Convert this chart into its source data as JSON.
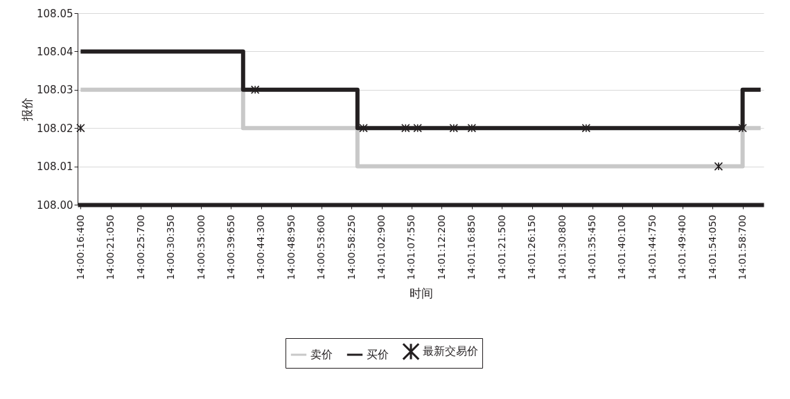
{
  "chart_data": {
    "type": "step",
    "xlabel": "时间",
    "ylabel": "报价",
    "categories": [
      "14:00:16:400",
      null,
      null,
      null,
      null,
      "14:00:21:050",
      null,
      null,
      null,
      null,
      "14:00:25:700",
      null,
      null,
      null,
      null,
      "14:00:30:350",
      null,
      null,
      null,
      null,
      "14:00:35:000",
      null,
      null,
      null,
      null,
      "14:00:39:650",
      null,
      null,
      null,
      null,
      "14:00:44:300",
      null,
      null,
      null,
      null,
      "14:00:48:950",
      null,
      null,
      null,
      null,
      "14:00:53:600",
      null,
      null,
      null,
      null,
      "14:00:58:250",
      null,
      null,
      null,
      null,
      "14:01:02:900",
      null,
      null,
      null,
      null,
      "14:01:07:550",
      null,
      null,
      null,
      null,
      "14:01:12:200",
      null,
      null,
      null,
      null,
      "14:01:16:850",
      null,
      null,
      null,
      null,
      "14:01:21:500",
      null,
      null,
      null,
      null,
      "14:01:26:150",
      null,
      null,
      null,
      null,
      "14:01:30:800",
      null,
      null,
      null,
      null,
      "14:01:35:450",
      null,
      null,
      null,
      null,
      "14:01:40:100",
      null,
      null,
      null,
      null,
      "14:01:44:750",
      null,
      null,
      null,
      null,
      "14:01:49:400",
      null,
      null,
      null,
      null,
      "14:01:54:050",
      null,
      null,
      null,
      null,
      "14:01:58:700",
      null,
      null,
      null
    ],
    "ylim": [
      108.0,
      108.05
    ],
    "yticks": [
      {
        "value": 108.0,
        "label": "108.00"
      },
      {
        "value": 108.01,
        "label": "108.01"
      },
      {
        "value": 108.02,
        "label": "108.02"
      },
      {
        "value": 108.03,
        "label": "108.03"
      },
      {
        "value": 108.04,
        "label": "108.04"
      },
      {
        "value": 108.05,
        "label": "108.05"
      }
    ],
    "grid": "y",
    "legend": "bottom",
    "line_style": "solid",
    "series": [
      {
        "name": "卖价",
        "color": "#c8c8c8",
        "values": [
          108.03,
          108.03,
          108.03,
          108.03,
          108.03,
          108.03,
          108.03,
          108.03,
          108.03,
          108.03,
          108.03,
          108.03,
          108.03,
          108.03,
          108.03,
          108.03,
          108.03,
          108.03,
          108.03,
          108.03,
          108.03,
          108.03,
          108.03,
          108.03,
          108.03,
          108.03,
          108.03,
          108.02,
          108.02,
          108.02,
          108.02,
          108.02,
          108.02,
          108.02,
          108.02,
          108.02,
          108.02,
          108.02,
          108.02,
          108.02,
          108.02,
          108.02,
          108.02,
          108.02,
          108.02,
          108.02,
          108.01,
          108.01,
          108.01,
          108.01,
          108.01,
          108.01,
          108.01,
          108.01,
          108.01,
          108.01,
          108.01,
          108.01,
          108.01,
          108.01,
          108.01,
          108.01,
          108.01,
          108.01,
          108.01,
          108.01,
          108.01,
          108.01,
          108.01,
          108.01,
          108.01,
          108.01,
          108.01,
          108.01,
          108.01,
          108.01,
          108.01,
          108.01,
          108.01,
          108.01,
          108.01,
          108.01,
          108.01,
          108.01,
          108.01,
          108.01,
          108.01,
          108.01,
          108.01,
          108.01,
          108.01,
          108.01,
          108.01,
          108.01,
          108.01,
          108.01,
          108.01,
          108.01,
          108.01,
          108.01,
          108.01,
          108.01,
          108.01,
          108.01,
          108.01,
          108.01,
          108.01,
          108.01,
          108.01,
          108.01,
          108.02,
          108.02,
          108.02,
          108.02
        ]
      },
      {
        "name": "买价",
        "color": "#231f20",
        "values": [
          108.04,
          108.04,
          108.04,
          108.04,
          108.04,
          108.04,
          108.04,
          108.04,
          108.04,
          108.04,
          108.04,
          108.04,
          108.04,
          108.04,
          108.04,
          108.04,
          108.04,
          108.04,
          108.04,
          108.04,
          108.04,
          108.04,
          108.04,
          108.04,
          108.04,
          108.04,
          108.04,
          108.03,
          108.03,
          108.03,
          108.03,
          108.03,
          108.03,
          108.03,
          108.03,
          108.03,
          108.03,
          108.03,
          108.03,
          108.03,
          108.03,
          108.03,
          108.03,
          108.03,
          108.03,
          108.03,
          108.02,
          108.02,
          108.02,
          108.02,
          108.02,
          108.02,
          108.02,
          108.02,
          108.02,
          108.02,
          108.02,
          108.02,
          108.02,
          108.02,
          108.02,
          108.02,
          108.02,
          108.02,
          108.02,
          108.02,
          108.02,
          108.02,
          108.02,
          108.02,
          108.02,
          108.02,
          108.02,
          108.02,
          108.02,
          108.02,
          108.02,
          108.02,
          108.02,
          108.02,
          108.02,
          108.02,
          108.02,
          108.02,
          108.02,
          108.02,
          108.02,
          108.02,
          108.02,
          108.02,
          108.02,
          108.02,
          108.02,
          108.02,
          108.02,
          108.02,
          108.02,
          108.02,
          108.02,
          108.02,
          108.02,
          108.02,
          108.02,
          108.02,
          108.02,
          108.02,
          108.02,
          108.02,
          108.02,
          108.02,
          108.03,
          108.03,
          108.03,
          108.03
        ]
      },
      {
        "name": "最新交易价",
        "type": "scatter",
        "marker": "cross",
        "color": "#231f20",
        "values": [
          108.02,
          null,
          null,
          null,
          null,
          null,
          null,
          null,
          null,
          null,
          null,
          null,
          null,
          null,
          null,
          null,
          null,
          null,
          null,
          null,
          null,
          null,
          null,
          null,
          null,
          null,
          null,
          null,
          null,
          108.03,
          null,
          null,
          null,
          null,
          null,
          null,
          null,
          null,
          null,
          null,
          null,
          null,
          null,
          null,
          null,
          null,
          null,
          108.02,
          null,
          null,
          null,
          null,
          null,
          null,
          108.02,
          null,
          108.02,
          null,
          null,
          null,
          null,
          null,
          108.02,
          null,
          null,
          108.02,
          null,
          null,
          null,
          null,
          null,
          null,
          null,
          null,
          null,
          null,
          null,
          null,
          null,
          null,
          null,
          null,
          null,
          null,
          108.02,
          null,
          null,
          null,
          null,
          null,
          null,
          null,
          null,
          null,
          null,
          null,
          null,
          null,
          null,
          null,
          null,
          null,
          null,
          null,
          null,
          null,
          108.01,
          null,
          null,
          null,
          108.02,
          null,
          null,
          null
        ]
      }
    ]
  }
}
